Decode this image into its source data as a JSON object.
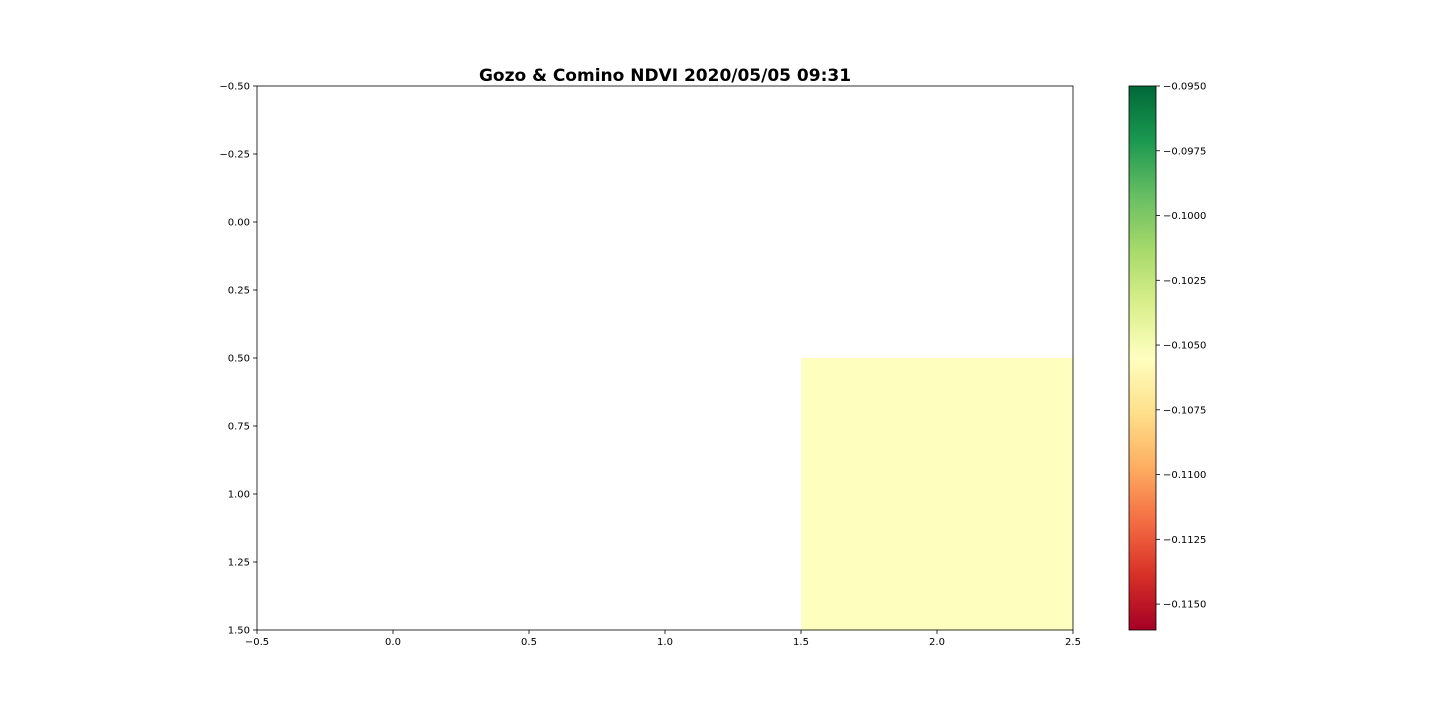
{
  "chart_data": {
    "type": "heatmap",
    "title": "Gozo & Comino NDVI 2020/05/05 09:31",
    "xlabel": "",
    "ylabel": "",
    "xlim": [
      -0.5,
      2.5
    ],
    "ylim": [
      1.5,
      -0.5
    ],
    "y_inverted": true,
    "x_ticks": [
      "−0.5",
      "0.0",
      "0.5",
      "1.0",
      "1.5",
      "2.0",
      "2.5"
    ],
    "x_tick_values": [
      -0.5,
      0.0,
      0.5,
      1.0,
      1.5,
      2.0,
      2.5
    ],
    "y_ticks": [
      "−0.50",
      "−0.25",
      "0.00",
      "0.25",
      "0.50",
      "0.75",
      "1.00",
      "1.25",
      "1.50"
    ],
    "y_tick_values": [
      -0.5,
      -0.25,
      0.0,
      0.25,
      0.5,
      0.75,
      1.0,
      1.25,
      1.5
    ],
    "grid": false,
    "colormap": "RdYlGn",
    "cells": [
      {
        "row": 0,
        "col": 0,
        "value": null
      },
      {
        "row": 0,
        "col": 1,
        "value": null
      },
      {
        "row": 0,
        "col": 2,
        "value": null
      },
      {
        "row": 1,
        "col": 0,
        "value": null
      },
      {
        "row": 1,
        "col": 1,
        "value": null
      },
      {
        "row": 1,
        "col": 2,
        "value": -0.1055
      }
    ],
    "cell_color": "#feffbe",
    "colorbar": {
      "range": [
        -0.116,
        -0.095
      ],
      "ticks": [
        "−0.0950",
        "−0.0975",
        "−0.1000",
        "−0.1025",
        "−0.1050",
        "−0.1075",
        "−0.1100",
        "−0.1125",
        "−0.1150"
      ],
      "tick_values": [
        -0.095,
        -0.0975,
        -0.1,
        -0.1025,
        -0.105,
        -0.1075,
        -0.11,
        -0.1125,
        -0.115
      ],
      "gradient_colors": [
        "#a50026",
        "#d73027",
        "#f46d43",
        "#fdae61",
        "#fee08b",
        "#ffffbf",
        "#d9ef8b",
        "#a6d96a",
        "#66bd63",
        "#1a9850",
        "#006837"
      ]
    }
  }
}
